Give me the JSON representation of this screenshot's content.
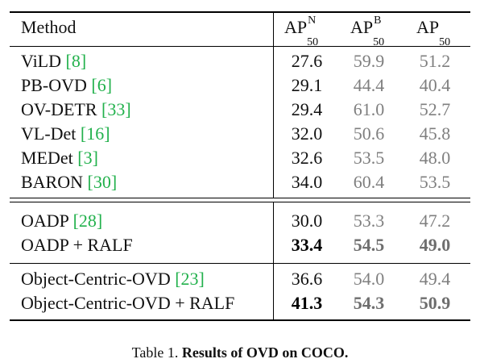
{
  "header": {
    "method": "Method",
    "ap_novel": {
      "base": "AP",
      "sup": "N",
      "sub": "50"
    },
    "ap_base": {
      "base": "AP",
      "sup": "B",
      "sub": "50"
    },
    "ap_all": {
      "base": "AP",
      "sub": "50"
    }
  },
  "groups": [
    {
      "rows": [
        {
          "name": "ViLD ",
          "cite": "[8]",
          "n": "27.6",
          "b": "59.9",
          "a": "51.2"
        },
        {
          "name": "PB-OVD ",
          "cite": "[6]",
          "n": "29.1",
          "b": "44.4",
          "a": "40.4"
        },
        {
          "name": "OV-DETR ",
          "cite": "[33]",
          "n": "29.4",
          "b": "61.0",
          "a": "52.7"
        },
        {
          "name": "VL-Det ",
          "cite": "[16]",
          "n": "32.0",
          "b": "50.6",
          "a": "45.8"
        },
        {
          "name": "MEDet ",
          "cite": "[3]",
          "n": "32.6",
          "b": "53.5",
          "a": "48.0"
        },
        {
          "name": "BARON ",
          "cite": "[30]",
          "n": "34.0",
          "b": "60.4",
          "a": "53.5"
        }
      ]
    },
    {
      "rows": [
        {
          "name": "OADP ",
          "cite": "[28]",
          "n": "30.0",
          "b": "53.3",
          "a": "47.2",
          "bold": false
        },
        {
          "name": "OADP + RALF",
          "cite": "",
          "n": "33.4",
          "b": "54.5",
          "a": "49.0",
          "bold": true
        }
      ]
    },
    {
      "rows": [
        {
          "name": "Object-Centric-OVD ",
          "cite": "[23]",
          "n": "36.6",
          "b": "54.0",
          "a": "49.4",
          "bold": false
        },
        {
          "name": "Object-Centric-OVD + RALF",
          "cite": "",
          "n": "41.3",
          "b": "54.3",
          "a": "50.9",
          "bold": true
        }
      ]
    }
  ],
  "caption": {
    "label": "Table 1. ",
    "text": "Results of OVD on COCO."
  }
}
